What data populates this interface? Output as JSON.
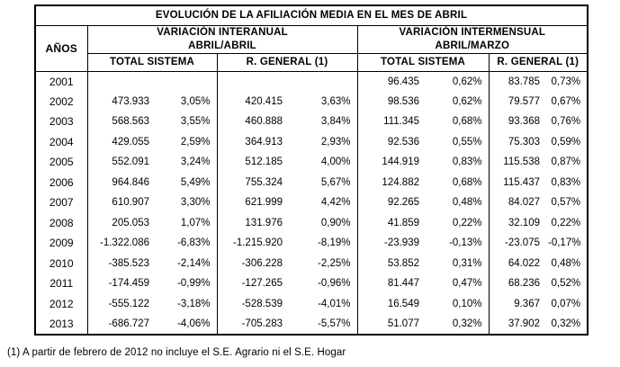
{
  "table": {
    "title": "EVOLUCIÓN DE LA AFILIACIÓN MEDIA EN EL MES DE ABRIL",
    "years_label": "AÑOS",
    "groups": [
      {
        "line1": "VARIACIÓN INTERANUAL",
        "line2": "ABRIL/ABRIL",
        "subcols": [
          "TOTAL SISTEMA",
          "R. GENERAL (1)"
        ]
      },
      {
        "line1": "VARIACIÓN INTERMENSUAL",
        "line2": "ABRIL/MARZO",
        "subcols": [
          "TOTAL SISTEMA",
          "R. GENERAL (1)"
        ]
      }
    ],
    "rows": [
      {
        "year": "2001",
        "cells": [
          "",
          "",
          "",
          "",
          "96.435",
          "0,62%",
          "83.785",
          "0,73%"
        ]
      },
      {
        "year": "2002",
        "cells": [
          "473.933",
          "3,05%",
          "420.415",
          "3,63%",
          "98.536",
          "0,62%",
          "79.577",
          "0,67%"
        ]
      },
      {
        "year": "2003",
        "cells": [
          "568.563",
          "3,55%",
          "460.888",
          "3,84%",
          "111.345",
          "0,68%",
          "93.368",
          "0,76%"
        ]
      },
      {
        "year": "2004",
        "cells": [
          "429.055",
          "2,59%",
          "364.913",
          "2,93%",
          "92.536",
          "0,55%",
          "75.303",
          "0,59%"
        ]
      },
      {
        "year": "2005",
        "cells": [
          "552.091",
          "3,24%",
          "512.185",
          "4,00%",
          "144.919",
          "0,83%",
          "115.538",
          "0,87%"
        ]
      },
      {
        "year": "2006",
        "cells": [
          "964.846",
          "5,49%",
          "755.324",
          "5,67%",
          "124.882",
          "0,68%",
          "115.437",
          "0,83%"
        ]
      },
      {
        "year": "2007",
        "cells": [
          "610.907",
          "3,30%",
          "621.999",
          "4,42%",
          "92.265",
          "0,48%",
          "84.027",
          "0,57%"
        ]
      },
      {
        "year": "2008",
        "cells": [
          "205.053",
          "1,07%",
          "131.976",
          "0,90%",
          "41.859",
          "0,22%",
          "32.109",
          "0,22%"
        ]
      },
      {
        "year": "2009",
        "cells": [
          "-1.322.086",
          "-6,83%",
          "-1.215.920",
          "-8,19%",
          "-23.939",
          "-0,13%",
          "-23.075",
          "-0,17%"
        ]
      },
      {
        "year": "2010",
        "cells": [
          "-385.523",
          "-2,14%",
          "-306.228",
          "-2,25%",
          "53.852",
          "0,31%",
          "64.022",
          "0,48%"
        ]
      },
      {
        "year": "2011",
        "cells": [
          "-174.459",
          "-0,99%",
          "-127.265",
          "-0,96%",
          "81.447",
          "0,47%",
          "68.236",
          "0,52%"
        ]
      },
      {
        "year": "2012",
        "cells": [
          "-555.122",
          "-3,18%",
          "-528.539",
          "-4,01%",
          "16.549",
          "0,10%",
          "9.367",
          "0,07%"
        ]
      },
      {
        "year": "2013",
        "cells": [
          "-686.727",
          "-4,06%",
          "-705.283",
          "-5,57%",
          "51.077",
          "0,32%",
          "37.902",
          "0,32%"
        ]
      }
    ]
  },
  "footnote": "(1) A partir de febrero de 2012 no incluye el S.E. Agrario ni el S.E. Hogar"
}
